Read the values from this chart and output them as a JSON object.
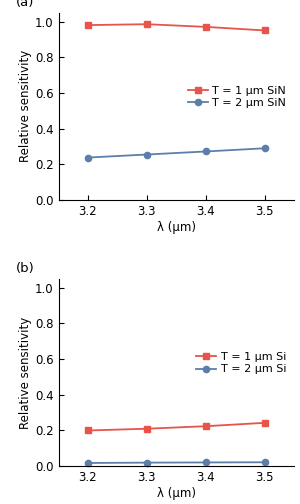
{
  "x": [
    3.2,
    3.3,
    3.4,
    3.5
  ],
  "panel_a": {
    "label": "(a)",
    "line1": {
      "y": [
        0.98,
        0.985,
        0.97,
        0.95
      ],
      "color": "#e8534a",
      "label": "T = 1 μm SiN",
      "marker": "s"
    },
    "line2": {
      "y": [
        0.238,
        0.255,
        0.272,
        0.29
      ],
      "color": "#5b7faa",
      "label": "T = 2 μm SiN",
      "marker": "o"
    },
    "ylabel": "Relative sensitivity",
    "xlabel": "λ (μm)",
    "ylim": [
      0.0,
      1.05
    ],
    "yticks": [
      0.0,
      0.2,
      0.4,
      0.6,
      0.8,
      1.0
    ]
  },
  "panel_b": {
    "label": "(b)",
    "line1": {
      "y": [
        0.2,
        0.21,
        0.224,
        0.243
      ],
      "color": "#e8534a",
      "label": "T = 1 μm Si",
      "marker": "s"
    },
    "line2": {
      "y": [
        0.018,
        0.02,
        0.021,
        0.022
      ],
      "color": "#5b7faa",
      "label": "T = 2 μm Si",
      "marker": "o"
    },
    "ylabel": "Relative sensitivity",
    "xlabel": "λ (μm)",
    "ylim": [
      0.0,
      1.05
    ],
    "yticks": [
      0.0,
      0.2,
      0.4,
      0.6,
      0.8,
      1.0
    ]
  },
  "background_color": "#ffffff",
  "linewidth": 1.3,
  "markersize": 4.5,
  "fontsize": 8.5,
  "label_fontsize": 9.5
}
